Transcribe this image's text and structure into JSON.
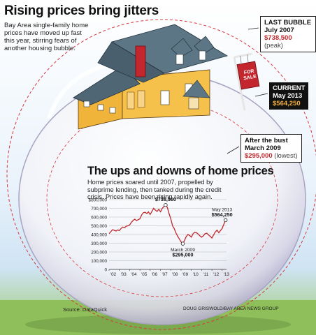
{
  "headline": "Rising prices bring jitters",
  "intro": "Bay Area single-family home prices have moved up fast this year, stirring fears of another housing bubble.",
  "callouts": {
    "last_bubble": {
      "title": "LAST BUBBLE",
      "date": "July 2007",
      "value": "$738,500",
      "note": "(peak)"
    },
    "current": {
      "title": "CURRENT",
      "date": "May 2013",
      "value": "$564,250"
    },
    "bust": {
      "title": "After the bust",
      "date": "March 2009",
      "value": "$295,000",
      "note": "(lowest)"
    }
  },
  "sign_text": "FOR SALE",
  "subhead": "The ups and downs of home prices",
  "description": "Home prices soared until 2007, propelled by subprime lending, then tanked during the credit crisis. Prices have been rising rapidly again.",
  "source": "Source: DataQuick",
  "credit": "DOUG GRISWOLD/BAY AREA NEWS GROUP",
  "colors": {
    "line": "#c0282d",
    "accent_red": "#c0282d",
    "bubble_dash": "#d6383e",
    "house_wall": "#f1b43a",
    "roof": "#4f6675"
  },
  "chart_data": {
    "type": "line",
    "title": "",
    "xlabel": "",
    "ylabel": "",
    "x_ticks": [
      "'02",
      "'03",
      "'04",
      "'05",
      "'06",
      "'07",
      "'08",
      "'09",
      "'10",
      "'11",
      "'12",
      "'13"
    ],
    "y_ticks": [
      "$800,000",
      "700,000",
      "600,000",
      "500,000",
      "400,000",
      "300,000",
      "200,000",
      "100,000",
      "0"
    ],
    "xlim": [
      2002.0,
      2013.42
    ],
    "ylim": [
      0,
      800000
    ],
    "grid": true,
    "series": [
      {
        "name": "",
        "x": [
          2002.0,
          2002.17,
          2002.33,
          2002.5,
          2002.67,
          2002.83,
          2003.0,
          2003.17,
          2003.33,
          2003.5,
          2003.67,
          2003.83,
          2004.0,
          2004.17,
          2004.33,
          2004.5,
          2004.67,
          2004.83,
          2005.0,
          2005.17,
          2005.33,
          2005.5,
          2005.67,
          2005.83,
          2006.0,
          2006.17,
          2006.33,
          2006.5,
          2006.67,
          2006.83,
          2007.0,
          2007.17,
          2007.33,
          2007.5,
          2007.67,
          2007.83,
          2008.0,
          2008.17,
          2008.33,
          2008.5,
          2008.67,
          2008.83,
          2009.0,
          2009.17,
          2009.33,
          2009.5,
          2009.67,
          2009.83,
          2010.0,
          2010.17,
          2010.33,
          2010.5,
          2010.67,
          2010.83,
          2011.0,
          2011.17,
          2011.33,
          2011.5,
          2011.67,
          2011.83,
          2012.0,
          2012.17,
          2012.33,
          2012.5,
          2012.67,
          2012.83,
          2013.0,
          2013.17,
          2013.33
        ],
        "values": [
          410000,
          432000,
          455000,
          448000,
          440000,
          452000,
          445000,
          470000,
          485000,
          478000,
          495000,
          500000,
          508000,
          540000,
          560000,
          575000,
          560000,
          570000,
          580000,
          625000,
          650000,
          655000,
          640000,
          660000,
          630000,
          665000,
          700000,
          680000,
          665000,
          690000,
          660000,
          700000,
          720000,
          738500,
          710000,
          640000,
          580000,
          500000,
          470000,
          420000,
          380000,
          350000,
          315000,
          295000,
          330000,
          375000,
          400000,
          390000,
          370000,
          410000,
          425000,
          420000,
          405000,
          385000,
          370000,
          385000,
          410000,
          415000,
          395000,
          380000,
          360000,
          395000,
          430000,
          450000,
          420000,
          445000,
          470000,
          520000,
          564250
        ]
      }
    ],
    "annotations": [
      {
        "date": "July 2007",
        "value": "$738,500",
        "x": 2007.5,
        "y": 738500
      },
      {
        "date": "March 2009",
        "value": "$295,000",
        "x": 2009.17,
        "y": 295000
      },
      {
        "date": "May 2013",
        "value": "$564,250",
        "x": 2013.33,
        "y": 564250
      }
    ]
  }
}
